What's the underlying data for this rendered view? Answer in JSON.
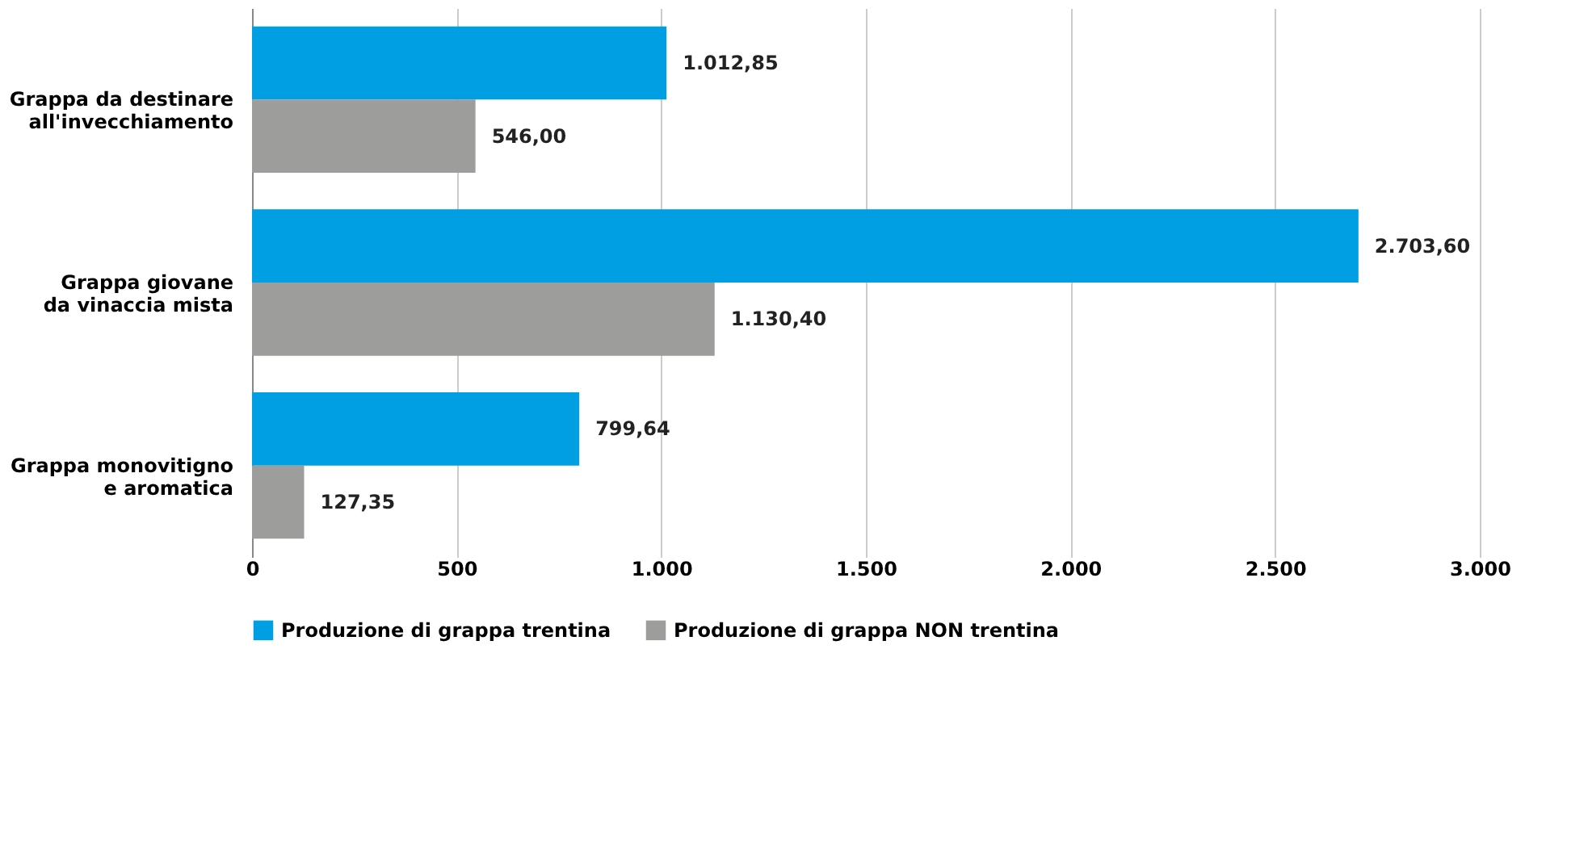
{
  "chart_data": {
    "type": "bar",
    "orientation": "horizontal",
    "categories": [
      "Grappa da destinare all'invecchiamento",
      "Grappa giovane da vinaccia mista",
      "Grappa monovitigno e aromatica"
    ],
    "series": [
      {
        "name": "Produzione di grappa trentina",
        "color": "#009fe3",
        "values": [
          1012.85,
          2703.6,
          799.64
        ],
        "value_labels": [
          "1.012,85",
          "2.703,60",
          "799,64"
        ]
      },
      {
        "name": "Produzione di grappa NON trentina",
        "color": "#9d9d9c",
        "values": [
          546.0,
          1130.4,
          127.35
        ],
        "value_labels": [
          "546,00",
          "1.130,40",
          "127,35"
        ]
      }
    ],
    "xlim": [
      0,
      3000
    ],
    "xticks": [
      0,
      500,
      {
        "value": 1000,
        "label": "1.000"
      },
      {
        "value": 1500,
        "label": "1.500"
      },
      {
        "value": 2000,
        "label": "2.000"
      },
      {
        "value": 2500,
        "label": "2.500"
      },
      {
        "value": 3000,
        "label": "3.000"
      }
    ],
    "grid": "x",
    "legend": "bottom"
  }
}
